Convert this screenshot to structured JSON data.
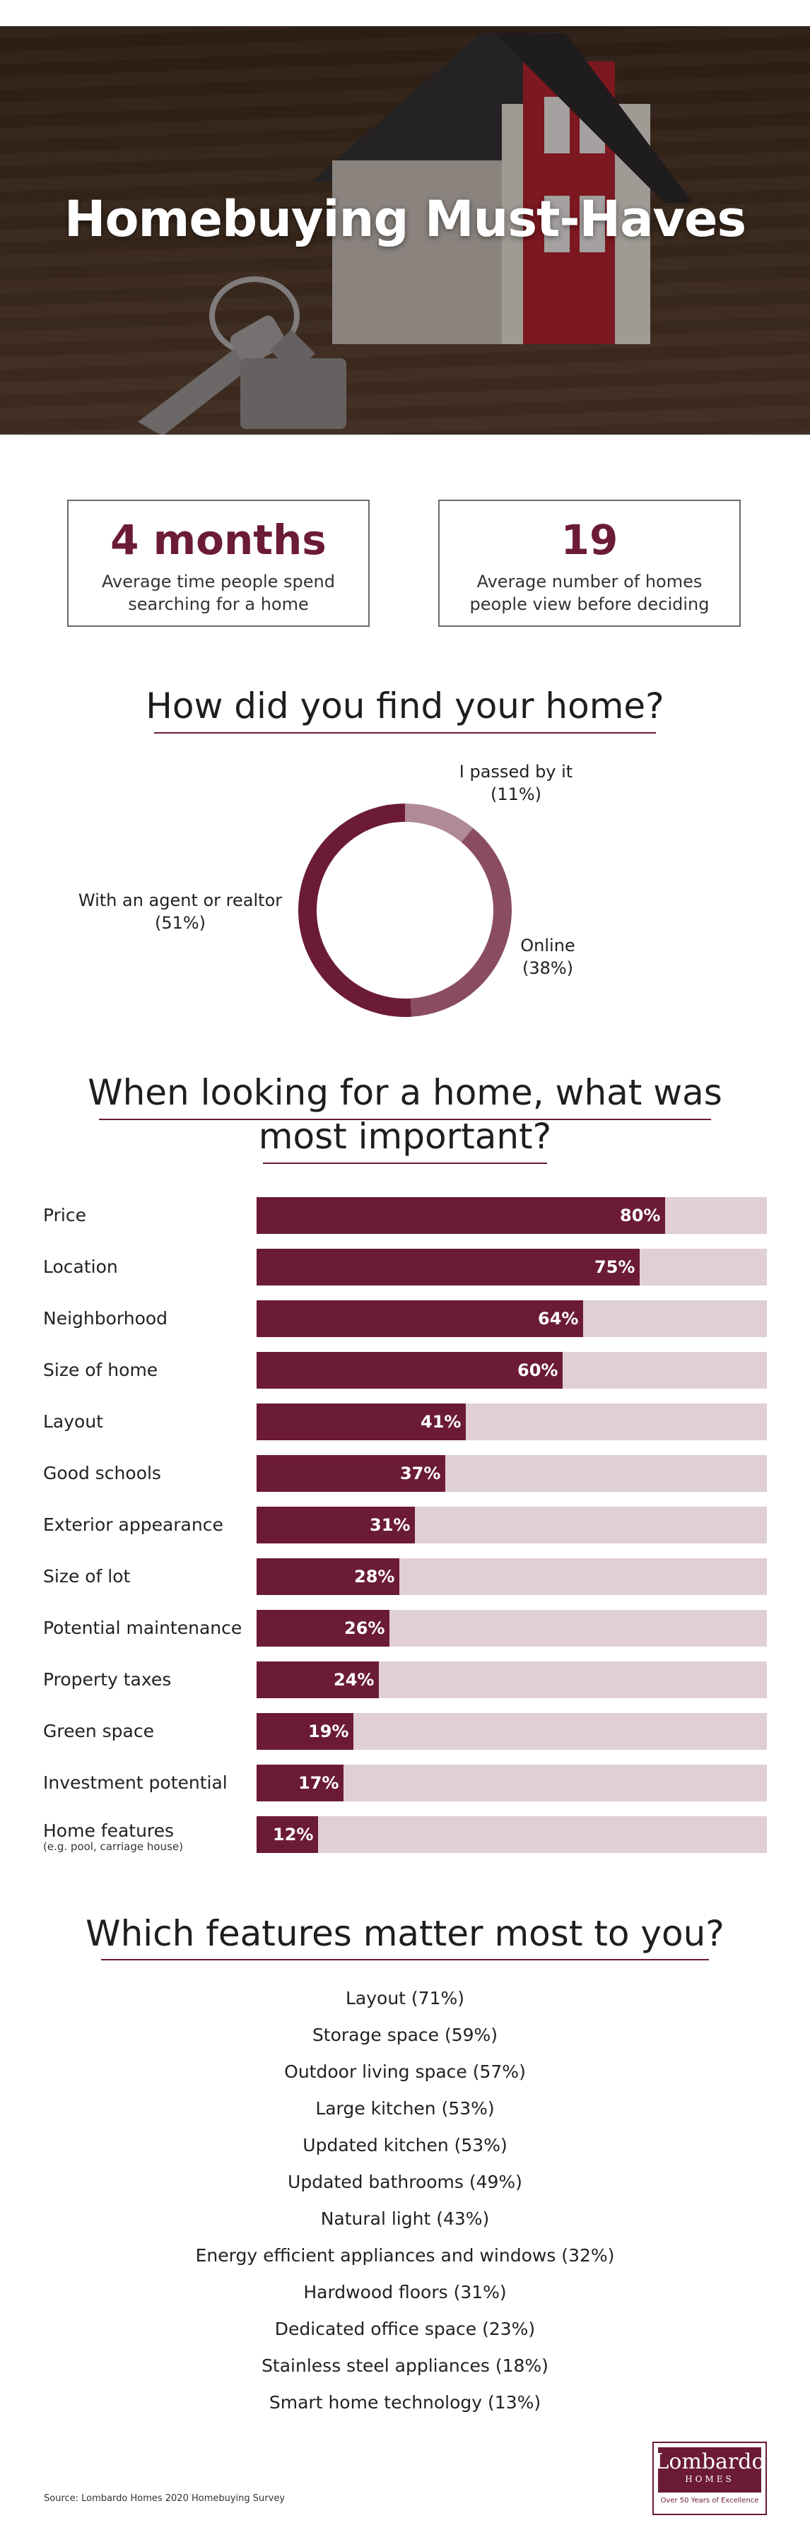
{
  "hero": {
    "title": "Homebuying Must-Haves"
  },
  "stats": [
    {
      "value": "4 months",
      "description": "Average time people spend searching for a home"
    },
    {
      "value": "19",
      "description": "Average number of homes people view before deciding"
    }
  ],
  "colors": {
    "accent": "#6b1b35",
    "accent_light": "#8a4d60",
    "accent_lighter": "#b08a97",
    "track": "#e0cfd4"
  },
  "sections": {
    "find_home": "How did you find your home?",
    "important_line1": "When looking for a home, what was",
    "important_line2": "most important?",
    "features": "Which features matter most to you?"
  },
  "chart_data": [
    {
      "type": "pie",
      "title": "How did you find your home?",
      "donut": true,
      "slices": [
        {
          "name": "With an agent or realtor",
          "value": 51,
          "label": "(51%)",
          "color": "#6b1b35"
        },
        {
          "name": "Online",
          "value": 38,
          "label": "(38%)",
          "color": "#8a4d60"
        },
        {
          "name": "I passed by it",
          "value": 11,
          "label": "(11%)",
          "color": "#b08a97"
        }
      ]
    },
    {
      "type": "bar",
      "orientation": "horizontal",
      "title": "When looking for a home, what was most important?",
      "xlim": [
        0,
        100
      ],
      "categories": [
        "Price",
        "Location",
        "Neighborhood",
        "Size of home",
        "Layout",
        "Good schools",
        "Exterior appearance",
        "Size of lot",
        "Potential maintenance",
        "Property taxes",
        "Green space",
        "Investment potential",
        "Home features"
      ],
      "sublabels": [
        "",
        "",
        "",
        "",
        "",
        "",
        "",
        "",
        "",
        "",
        "",
        "",
        "(e.g. pool, carriage house)"
      ],
      "values": [
        80,
        75,
        64,
        60,
        41,
        37,
        31,
        28,
        26,
        24,
        19,
        17,
        12
      ],
      "value_labels": [
        "80%",
        "75%",
        "64%",
        "60%",
        "41%",
        "37%",
        "31%",
        "28%",
        "26%",
        "24%",
        "19%",
        "17%",
        "12%"
      ]
    }
  ],
  "features": [
    "Layout (71%)",
    "Storage space (59%)",
    "Outdoor living space (57%)",
    "Large kitchen (53%)",
    "Updated kitchen (53%)",
    "Updated bathrooms (49%)",
    "Natural light (43%)",
    "Energy efficient appliances and windows (32%)",
    "Hardwood floors (31%)",
    "Dedicated office space (23%)",
    "Stainless steel appliances (18%)",
    "Smart home technology (13%)"
  ],
  "footer": {
    "source": "Source: Lombardo Homes 2020 Homebuying Survey",
    "logo_name": "Lombardo",
    "logo_sub": "HOMES",
    "logo_tagline": "Over 50 Years of Excellence"
  }
}
